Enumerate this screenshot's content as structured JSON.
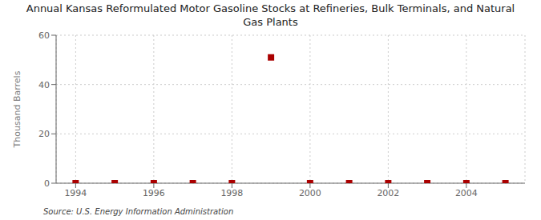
{
  "chart_data": {
    "type": "scatter",
    "title": "Annual Kansas Reformulated Motor Gasoline Stocks at Refineries, Bulk Terminals, and Natural\nGas Plants",
    "y_label": "Thousand Barrels",
    "annotations": [
      "Source: U.S. Energy Information Administration"
    ],
    "x": [
      1994,
      1995,
      1996,
      1997,
      1998,
      1999,
      2000,
      2001,
      2002,
      2003,
      2004,
      2005
    ],
    "values": [
      0,
      0,
      0,
      0,
      0,
      51,
      0,
      0,
      0,
      0,
      0,
      0
    ],
    "color": "#aa0000",
    "marker": "square",
    "xlim": [
      1993.5,
      2005.5
    ],
    "ylim": [
      0,
      60
    ],
    "xticks": [
      1994,
      1996,
      1998,
      2000,
      2002,
      2004
    ],
    "yticks": [
      0,
      20,
      40,
      60
    ],
    "grid": true
  }
}
